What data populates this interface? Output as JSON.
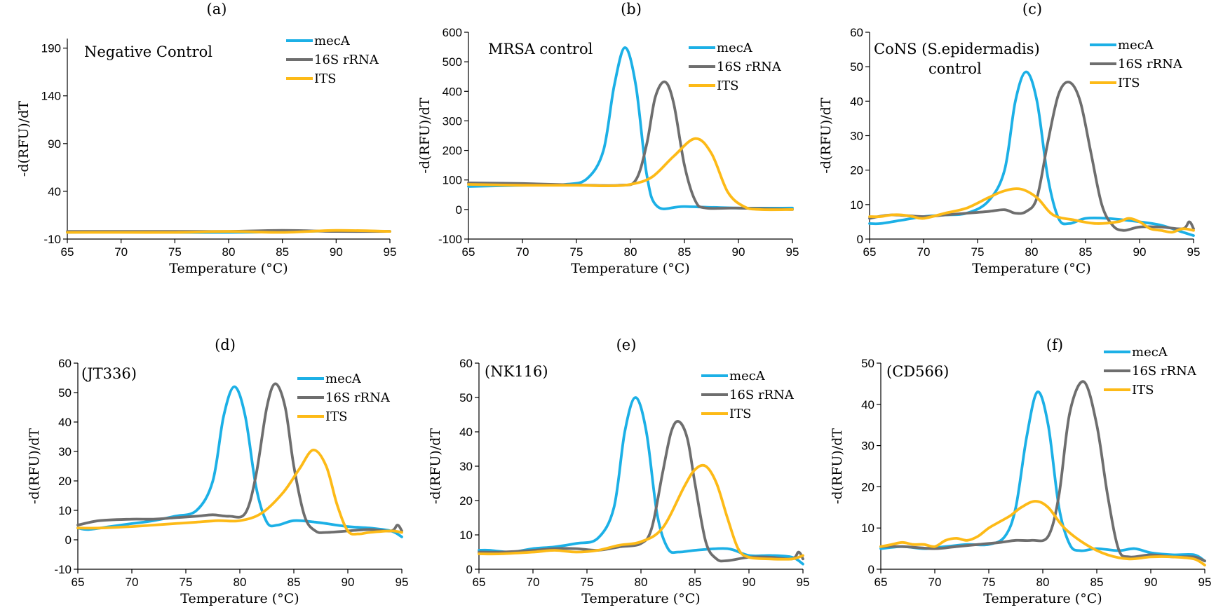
{
  "colors": {
    "mecA": "#1CB0E6",
    "16S rRNA": "#6E6E6E",
    "ITS": "#FDBA17"
  },
  "chart_data": [
    {
      "type": "line",
      "title": "(a)",
      "annotation": [
        "Negative Control"
      ],
      "xlabel": "Temperature (°C)",
      "ylabel": "-d(RFU)/dT",
      "xlim": [
        65,
        95
      ],
      "ylim": [
        -10,
        200
      ],
      "xticks": [
        65,
        70,
        75,
        80,
        85,
        90,
        95
      ],
      "yticks": [
        -10,
        40,
        90,
        140,
        190
      ],
      "grid": false,
      "legend": "top-right",
      "series": [
        {
          "name": "mecA",
          "x": [
            65,
            70,
            75,
            80,
            85,
            90,
            95
          ],
          "y": [
            -3,
            -2.5,
            -3,
            -3,
            -2.5,
            -1.5,
            -2
          ]
        },
        {
          "name": "16S rRNA",
          "x": [
            65,
            70,
            75,
            80,
            85,
            90,
            95
          ],
          "y": [
            -2,
            -2,
            -2,
            -2,
            -1,
            -2,
            -2
          ]
        },
        {
          "name": "ITS",
          "x": [
            65,
            70,
            75,
            80,
            85,
            90,
            95
          ],
          "y": [
            -3,
            -3,
            -3,
            -2,
            -3,
            -1,
            -2
          ]
        }
      ]
    },
    {
      "type": "line",
      "title": "(b)",
      "annotation": [
        "MRSA control"
      ],
      "xlabel": "Temperature (°C)",
      "ylabel": "-d(RFU)/dT",
      "xlim": [
        65,
        95
      ],
      "ylim": [
        -100,
        600
      ],
      "xticks": [
        65,
        70,
        75,
        80,
        85,
        90,
        95
      ],
      "yticks": [
        -100,
        0,
        100,
        200,
        300,
        400,
        500,
        600
      ],
      "grid": false,
      "legend": "top-right",
      "series": [
        {
          "name": "mecA",
          "x": [
            65,
            70,
            74,
            76,
            77.5,
            78.5,
            79.5,
            80.5,
            81.5,
            82.5,
            85,
            90,
            95
          ],
          "y": [
            78,
            82,
            85,
            105,
            200,
            420,
            548,
            420,
            120,
            10,
            10,
            5,
            5
          ]
        },
        {
          "name": "16S rRNA",
          "x": [
            65,
            70,
            75,
            79,
            80.5,
            81.5,
            82.3,
            83.2,
            84,
            85,
            86,
            87,
            90,
            95
          ],
          "y": [
            90,
            88,
            83,
            82,
            100,
            220,
            380,
            432,
            360,
            150,
            30,
            5,
            5,
            0
          ]
        },
        {
          "name": "ITS",
          "x": [
            65,
            70,
            75,
            78,
            80,
            82,
            84,
            86,
            87.5,
            89,
            90.5,
            92,
            95
          ],
          "y": [
            85,
            82,
            82,
            80,
            85,
            110,
            180,
            240,
            190,
            60,
            10,
            0,
            0
          ]
        }
      ]
    },
    {
      "type": "line",
      "title": "(c)",
      "annotation": [
        "CoNS (S.epidermadis)",
        "control"
      ],
      "xlabel": "Temperature (°C)",
      "ylabel": "-d(RFU)/dT",
      "xlim": [
        65,
        95
      ],
      "ylim": [
        0,
        60
      ],
      "xticks": [
        65,
        70,
        75,
        80,
        85,
        90,
        95
      ],
      "yticks": [
        0,
        10,
        20,
        30,
        40,
        50,
        60
      ],
      "grid": false,
      "legend": "top-right",
      "series": [
        {
          "name": "mecA",
          "x": [
            65,
            66,
            68,
            70,
            72,
            74,
            76,
            77.5,
            78.5,
            79.5,
            80.5,
            81.5,
            82.5,
            83.5,
            85,
            87,
            90,
            92,
            94,
            95
          ],
          "y": [
            4.5,
            4.5,
            5.5,
            6.5,
            7,
            7.5,
            11,
            20,
            40,
            48.5,
            40,
            18,
            6,
            4.5,
            6,
            6,
            5,
            4,
            2,
            1
          ]
        },
        {
          "name": "16S rRNA",
          "x": [
            65,
            67,
            70,
            72,
            74,
            76,
            77.5,
            78.5,
            79.5,
            80.5,
            81.5,
            82.5,
            83.5,
            84.5,
            85.5,
            86.5,
            87.5,
            88.5,
            90,
            92,
            94,
            94.6,
            95
          ],
          "y": [
            6,
            7,
            6.5,
            7,
            7.5,
            8,
            8.5,
            7.5,
            8,
            12,
            28,
            42,
            45.5,
            40,
            25,
            10,
            4,
            2.5,
            3.5,
            3.5,
            3,
            5,
            3
          ]
        },
        {
          "name": "ITS",
          "x": [
            65,
            66,
            67,
            68,
            69,
            70,
            72,
            74,
            76,
            77.5,
            79,
            80.5,
            82,
            84,
            86,
            88,
            89,
            90,
            91,
            92,
            93,
            94,
            95
          ],
          "y": [
            6.5,
            6.5,
            7,
            7,
            6.5,
            6,
            7.5,
            9,
            12,
            14,
            14.5,
            12,
            7,
            5.5,
            4.5,
            5,
            6,
            5,
            3,
            2.5,
            2,
            3,
            2.5
          ]
        }
      ]
    },
    {
      "type": "line",
      "title": "(d)",
      "annotation": [
        "(JT336)"
      ],
      "xlabel": "Temperature (°C)",
      "ylabel": "-d(RFU)/dT",
      "xlim": [
        65,
        95
      ],
      "ylim": [
        -10,
        60
      ],
      "xticks": [
        65,
        70,
        75,
        80,
        85,
        90,
        95
      ],
      "yticks": [
        -10,
        0,
        10,
        20,
        30,
        40,
        50,
        60
      ],
      "grid": false,
      "legend": "top-right",
      "series": [
        {
          "name": "mecA",
          "x": [
            65,
            66,
            68,
            70,
            72,
            74,
            76,
            77.5,
            78.5,
            79.5,
            80.5,
            81.5,
            82.5,
            83.5,
            85,
            87,
            90,
            92,
            94,
            95
          ],
          "y": [
            4,
            3.5,
            4.5,
            5.5,
            6.5,
            8,
            10,
            20,
            42,
            52,
            42,
            18,
            6,
            5,
            6.5,
            6,
            4.5,
            4,
            3,
            1
          ]
        },
        {
          "name": "16S rRNA",
          "x": [
            65,
            67,
            70,
            72,
            74,
            76,
            77.5,
            79,
            80.5,
            81.5,
            82.5,
            83.3,
            84.2,
            85,
            86,
            87,
            88,
            90,
            92,
            94,
            94.6,
            95
          ],
          "y": [
            5,
            6.5,
            7,
            7,
            7.5,
            8,
            8.5,
            8,
            9,
            22,
            45,
            53,
            45,
            25,
            8,
            3,
            2.5,
            3,
            3.5,
            3,
            5,
            3
          ]
        },
        {
          "name": "ITS",
          "x": [
            65,
            67,
            70,
            72,
            74,
            76,
            78,
            80,
            82,
            84,
            85.5,
            86.8,
            88,
            89,
            90,
            91,
            92,
            94,
            95
          ],
          "y": [
            4,
            4,
            4.5,
            5,
            5.5,
            6,
            6.5,
            6.5,
            9,
            16,
            24,
            30.5,
            25,
            12,
            3,
            2,
            2.5,
            3,
            2.5
          ]
        }
      ]
    },
    {
      "type": "line",
      "title": "(e)",
      "annotation": [
        "(NK116)"
      ],
      "xlabel": "Temperature (°C)",
      "ylabel": "-d(RFU)/dT",
      "xlim": [
        65,
        95
      ],
      "ylim": [
        0,
        60
      ],
      "xticks": [
        65,
        70,
        75,
        80,
        85,
        90,
        95
      ],
      "yticks": [
        0,
        10,
        20,
        30,
        40,
        50,
        60
      ],
      "grid": false,
      "legend": "top-right",
      "series": [
        {
          "name": "mecA",
          "x": [
            65,
            66,
            68,
            70,
            72,
            74,
            76,
            77.5,
            78.5,
            79.5,
            80.5,
            81.5,
            82.5,
            83.5,
            85,
            88,
            90,
            92,
            94,
            95
          ],
          "y": [
            5.5,
            5.5,
            5,
            6,
            6.5,
            7.5,
            9,
            18,
            40,
            50,
            40,
            16,
            6,
            5,
            5.5,
            6,
            4,
            4,
            3.5,
            1.5
          ]
        },
        {
          "name": "16S rRNA",
          "x": [
            65,
            67,
            70,
            72,
            74,
            76,
            78,
            80,
            81,
            82,
            82.8,
            83.5,
            84.3,
            85,
            86,
            87,
            88,
            90,
            92,
            94,
            94.6,
            95
          ],
          "y": [
            5,
            5,
            5.5,
            6,
            6,
            5.5,
            6.5,
            7.5,
            12,
            28,
            40,
            43,
            38,
            25,
            8,
            3,
            2.5,
            3.5,
            3.5,
            3,
            5,
            3
          ]
        },
        {
          "name": "ITS",
          "x": [
            65,
            67,
            70,
            72,
            74,
            76,
            78,
            80,
            82,
            84,
            85,
            86,
            87,
            88,
            89,
            90,
            92,
            94,
            95
          ],
          "y": [
            4.5,
            4.5,
            5,
            5.5,
            5,
            5.5,
            7,
            8,
            12,
            24,
            29,
            30,
            25,
            15,
            6,
            3.5,
            3,
            3,
            4
          ]
        }
      ]
    },
    {
      "type": "line",
      "title": "(f)",
      "annotation": [
        "(CD566)"
      ],
      "xlabel": "Temperature (°C)",
      "ylabel": "-d(RFU)/dT",
      "xlim": [
        65,
        95
      ],
      "ylim": [
        0,
        50
      ],
      "xticks": [
        65,
        70,
        75,
        80,
        85,
        90,
        95
      ],
      "yticks": [
        0,
        10,
        20,
        30,
        40,
        50
      ],
      "grid": false,
      "legend": "top-right",
      "series": [
        {
          "name": "mecA",
          "x": [
            65,
            67,
            69,
            71,
            73,
            75,
            76.5,
            77.5,
            78.5,
            79.5,
            80.5,
            81.5,
            82.5,
            83.5,
            85,
            87,
            88.5,
            90,
            92,
            94,
            95
          ],
          "y": [
            5,
            5.5,
            5,
            5.5,
            6,
            6,
            8,
            15,
            32,
            43,
            35,
            15,
            6,
            4.5,
            5,
            4.5,
            5,
            4,
            3.5,
            3.5,
            2
          ]
        },
        {
          "name": "16S rRNA",
          "x": [
            65,
            67,
            70,
            72,
            74,
            76,
            77.5,
            79,
            80.5,
            81.5,
            82.5,
            83.8,
            85,
            86,
            87,
            88,
            90,
            92,
            94,
            95
          ],
          "y": [
            5.5,
            5.5,
            5,
            5.5,
            6,
            6.5,
            7,
            7,
            8,
            18,
            38,
            45.5,
            35,
            18,
            5,
            3,
            3.5,
            3,
            3,
            2
          ]
        },
        {
          "name": "ITS",
          "x": [
            65,
            66,
            67,
            68,
            69,
            70,
            71,
            72,
            73,
            74,
            75,
            76,
            77,
            78,
            79.3,
            80.5,
            82,
            84,
            86,
            88,
            90,
            92,
            94,
            95
          ],
          "y": [
            5.5,
            6,
            6.5,
            6,
            6,
            5.5,
            7,
            7.5,
            7,
            8,
            10,
            11.5,
            13,
            15,
            16.5,
            15,
            10,
            6,
            3.5,
            2.5,
            3,
            3,
            2.5,
            1
          ]
        }
      ]
    }
  ]
}
